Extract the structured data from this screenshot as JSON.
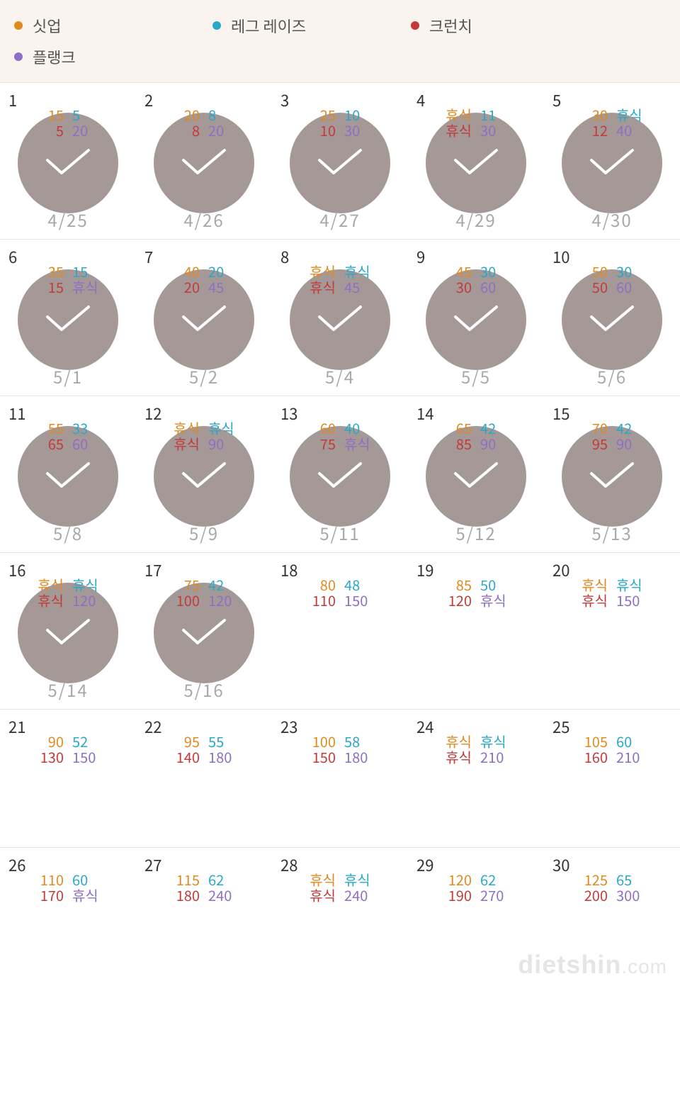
{
  "colors": {
    "situp": "#e08a1e",
    "leg": "#2aa8c9",
    "crunch": "#c33a3a",
    "plank": "#8d6fc4",
    "circle": "#a59997",
    "legend_bg": "#fbf3ee",
    "border": "#e5e5e5",
    "daynum": "#333333",
    "date": "#a8a8a8"
  },
  "legend": [
    {
      "key": "situp",
      "label": "싯업"
    },
    {
      "key": "leg",
      "label": "레그 레이즈"
    },
    {
      "key": "crunch",
      "label": "크런치"
    },
    {
      "key": "plank",
      "label": "플랭크"
    }
  ],
  "rest_label": "휴식",
  "watermark": {
    "main": "dietshin",
    "suffix": ".com"
  },
  "days": [
    {
      "n": 1,
      "done": true,
      "date": "4/25",
      "situp": "15",
      "leg": "5",
      "crunch": "5",
      "plank": "20"
    },
    {
      "n": 2,
      "done": true,
      "date": "4/26",
      "situp": "20",
      "leg": "8",
      "crunch": "8",
      "plank": "20"
    },
    {
      "n": 3,
      "done": true,
      "date": "4/27",
      "situp": "25",
      "leg": "10",
      "crunch": "10",
      "plank": "30"
    },
    {
      "n": 4,
      "done": true,
      "date": "4/29",
      "situp": "휴식",
      "leg": "11",
      "crunch": "휴식",
      "plank": "30"
    },
    {
      "n": 5,
      "done": true,
      "date": "4/30",
      "situp": "30",
      "leg": "휴식",
      "crunch": "12",
      "plank": "40"
    },
    {
      "n": 6,
      "done": true,
      "date": "5/1",
      "situp": "35",
      "leg": "15",
      "crunch": "15",
      "plank": "휴식"
    },
    {
      "n": 7,
      "done": true,
      "date": "5/2",
      "situp": "40",
      "leg": "20",
      "crunch": "20",
      "plank": "45"
    },
    {
      "n": 8,
      "done": true,
      "date": "5/4",
      "situp": "휴식",
      "leg": "휴식",
      "crunch": "휴식",
      "plank": "45"
    },
    {
      "n": 9,
      "done": true,
      "date": "5/5",
      "situp": "45",
      "leg": "30",
      "crunch": "30",
      "plank": "60"
    },
    {
      "n": 10,
      "done": true,
      "date": "5/6",
      "situp": "50",
      "leg": "30",
      "crunch": "50",
      "plank": "60"
    },
    {
      "n": 11,
      "done": true,
      "date": "5/8",
      "situp": "55",
      "leg": "33",
      "crunch": "65",
      "plank": "60"
    },
    {
      "n": 12,
      "done": true,
      "date": "5/9",
      "situp": "휴식",
      "leg": "휴식",
      "crunch": "휴식",
      "plank": "90"
    },
    {
      "n": 13,
      "done": true,
      "date": "5/11",
      "situp": "60",
      "leg": "40",
      "crunch": "75",
      "plank": "휴식"
    },
    {
      "n": 14,
      "done": true,
      "date": "5/12",
      "situp": "65",
      "leg": "42",
      "crunch": "85",
      "plank": "90"
    },
    {
      "n": 15,
      "done": true,
      "date": "5/13",
      "situp": "70",
      "leg": "42",
      "crunch": "95",
      "plank": "90"
    },
    {
      "n": 16,
      "done": true,
      "date": "5/14",
      "situp": "휴식",
      "leg": "휴식",
      "crunch": "휴식",
      "plank": "120"
    },
    {
      "n": 17,
      "done": true,
      "date": "5/16",
      "situp": "75",
      "leg": "42",
      "crunch": "100",
      "plank": "120"
    },
    {
      "n": 18,
      "done": false,
      "date": "",
      "situp": "80",
      "leg": "48",
      "crunch": "110",
      "plank": "150"
    },
    {
      "n": 19,
      "done": false,
      "date": "",
      "situp": "85",
      "leg": "50",
      "crunch": "120",
      "plank": "휴식"
    },
    {
      "n": 20,
      "done": false,
      "date": "",
      "situp": "휴식",
      "leg": "휴식",
      "crunch": "휴식",
      "plank": "150"
    },
    {
      "n": 21,
      "done": false,
      "date": "",
      "situp": "90",
      "leg": "52",
      "crunch": "130",
      "plank": "150"
    },
    {
      "n": 22,
      "done": false,
      "date": "",
      "situp": "95",
      "leg": "55",
      "crunch": "140",
      "plank": "180"
    },
    {
      "n": 23,
      "done": false,
      "date": "",
      "situp": "100",
      "leg": "58",
      "crunch": "150",
      "plank": "180"
    },
    {
      "n": 24,
      "done": false,
      "date": "",
      "situp": "휴식",
      "leg": "휴식",
      "crunch": "휴식",
      "plank": "210"
    },
    {
      "n": 25,
      "done": false,
      "date": "",
      "situp": "105",
      "leg": "60",
      "crunch": "160",
      "plank": "210"
    },
    {
      "n": 26,
      "done": false,
      "date": "",
      "situp": "110",
      "leg": "60",
      "crunch": "170",
      "plank": "휴식"
    },
    {
      "n": 27,
      "done": false,
      "date": "",
      "situp": "115",
      "leg": "62",
      "crunch": "180",
      "plank": "240"
    },
    {
      "n": 28,
      "done": false,
      "date": "",
      "situp": "휴식",
      "leg": "휴식",
      "crunch": "휴식",
      "plank": "240"
    },
    {
      "n": 29,
      "done": false,
      "date": "",
      "situp": "120",
      "leg": "62",
      "crunch": "190",
      "plank": "270"
    },
    {
      "n": 30,
      "done": false,
      "date": "",
      "situp": "125",
      "leg": "65",
      "crunch": "200",
      "plank": "300"
    }
  ]
}
